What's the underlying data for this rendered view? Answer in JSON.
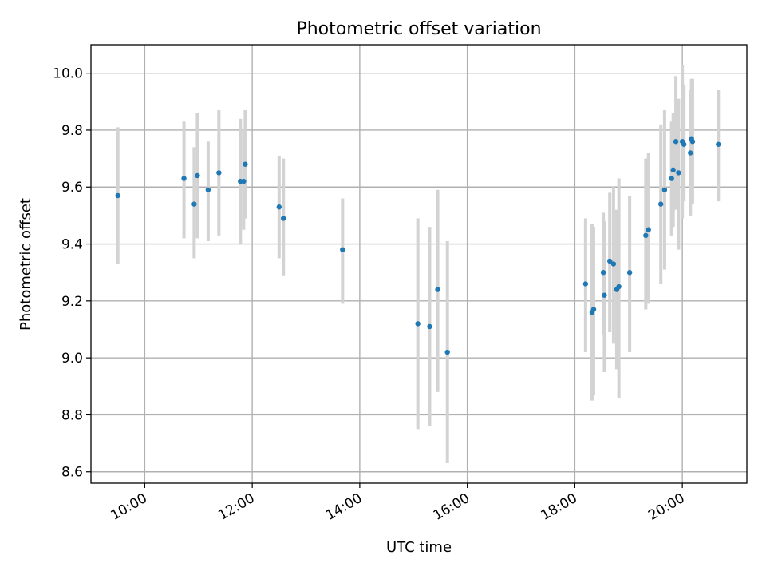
{
  "chart_data": {
    "type": "scatter",
    "title": "Photometric offset variation",
    "xlabel": "UTC time",
    "ylabel": "Photometric offset",
    "grid": true,
    "xlim": [
      9.0,
      21.2
    ],
    "ylim": [
      8.56,
      10.1
    ],
    "x_ticks": [
      {
        "value": 10,
        "label": "10:00"
      },
      {
        "value": 12,
        "label": "12:00"
      },
      {
        "value": 14,
        "label": "14:00"
      },
      {
        "value": 16,
        "label": "16:00"
      },
      {
        "value": 18,
        "label": "18:00"
      },
      {
        "value": 20,
        "label": "20:00"
      }
    ],
    "y_ticks": [
      {
        "value": 8.6,
        "label": "8.6"
      },
      {
        "value": 8.8,
        "label": "8.8"
      },
      {
        "value": 9.0,
        "label": "9.0"
      },
      {
        "value": 9.2,
        "label": "9.2"
      },
      {
        "value": 9.4,
        "label": "9.4"
      },
      {
        "value": 9.6,
        "label": "9.6"
      },
      {
        "value": 9.8,
        "label": "9.8"
      },
      {
        "value": 10.0,
        "label": "10.0"
      }
    ],
    "colors": {
      "marker": "#1f77b4",
      "errorbar": "#d3d3d3",
      "grid": "#b0b0b0"
    },
    "series": [
      {
        "name": "Photometric offset",
        "points": [
          {
            "x": 9.5,
            "y": 9.57,
            "lo": 9.33,
            "hi": 9.81
          },
          {
            "x": 10.73,
            "y": 9.63,
            "lo": 9.42,
            "hi": 9.83
          },
          {
            "x": 10.92,
            "y": 9.54,
            "lo": 9.35,
            "hi": 9.74
          },
          {
            "x": 10.98,
            "y": 9.64,
            "lo": 9.42,
            "hi": 9.86
          },
          {
            "x": 11.18,
            "y": 9.59,
            "lo": 9.41,
            "hi": 9.76
          },
          {
            "x": 11.38,
            "y": 9.65,
            "lo": 9.43,
            "hi": 9.87
          },
          {
            "x": 11.78,
            "y": 9.62,
            "lo": 9.4,
            "hi": 9.84
          },
          {
            "x": 11.84,
            "y": 9.62,
            "lo": 9.45,
            "hi": 9.8
          },
          {
            "x": 11.87,
            "y": 9.68,
            "lo": 9.49,
            "hi": 9.87
          },
          {
            "x": 12.5,
            "y": 9.53,
            "lo": 9.35,
            "hi": 9.71
          },
          {
            "x": 12.58,
            "y": 9.49,
            "lo": 9.29,
            "hi": 9.7
          },
          {
            "x": 13.68,
            "y": 9.38,
            "lo": 9.19,
            "hi": 9.56
          },
          {
            "x": 15.08,
            "y": 9.12,
            "lo": 8.75,
            "hi": 9.49
          },
          {
            "x": 15.3,
            "y": 9.11,
            "lo": 8.76,
            "hi": 9.46
          },
          {
            "x": 15.45,
            "y": 9.24,
            "lo": 8.88,
            "hi": 9.59
          },
          {
            "x": 15.63,
            "y": 9.02,
            "lo": 8.63,
            "hi": 9.41
          },
          {
            "x": 18.2,
            "y": 9.26,
            "lo": 9.02,
            "hi": 9.49
          },
          {
            "x": 18.32,
            "y": 9.16,
            "lo": 8.85,
            "hi": 9.47
          },
          {
            "x": 18.35,
            "y": 9.17,
            "lo": 8.87,
            "hi": 9.46
          },
          {
            "x": 18.53,
            "y": 9.3,
            "lo": 9.08,
            "hi": 9.51
          },
          {
            "x": 18.55,
            "y": 9.22,
            "lo": 8.95,
            "hi": 9.48
          },
          {
            "x": 18.65,
            "y": 9.34,
            "lo": 9.09,
            "hi": 9.58
          },
          {
            "x": 18.72,
            "y": 9.33,
            "lo": 9.05,
            "hi": 9.6
          },
          {
            "x": 18.78,
            "y": 9.24,
            "lo": 8.96,
            "hi": 9.52
          },
          {
            "x": 18.82,
            "y": 9.25,
            "lo": 8.86,
            "hi": 9.63
          },
          {
            "x": 19.02,
            "y": 9.3,
            "lo": 9.02,
            "hi": 9.57
          },
          {
            "x": 19.32,
            "y": 9.43,
            "lo": 9.17,
            "hi": 9.7
          },
          {
            "x": 19.37,
            "y": 9.45,
            "lo": 9.19,
            "hi": 9.72
          },
          {
            "x": 19.6,
            "y": 9.54,
            "lo": 9.26,
            "hi": 9.82
          },
          {
            "x": 19.67,
            "y": 9.59,
            "lo": 9.31,
            "hi": 9.87
          },
          {
            "x": 19.8,
            "y": 9.63,
            "lo": 9.43,
            "hi": 9.83
          },
          {
            "x": 19.83,
            "y": 9.66,
            "lo": 9.46,
            "hi": 9.86
          },
          {
            "x": 19.88,
            "y": 9.76,
            "lo": 9.52,
            "hi": 9.99
          },
          {
            "x": 19.93,
            "y": 9.65,
            "lo": 9.38,
            "hi": 9.91
          },
          {
            "x": 20.0,
            "y": 9.76,
            "lo": 9.49,
            "hi": 10.03
          },
          {
            "x": 20.03,
            "y": 9.75,
            "lo": 9.55,
            "hi": 9.96
          },
          {
            "x": 20.15,
            "y": 9.72,
            "lo": 9.5,
            "hi": 9.94
          },
          {
            "x": 20.17,
            "y": 9.77,
            "lo": 9.57,
            "hi": 9.98
          },
          {
            "x": 20.19,
            "y": 9.76,
            "lo": 9.54,
            "hi": 9.98
          },
          {
            "x": 20.67,
            "y": 9.75,
            "lo": 9.55,
            "hi": 9.94
          }
        ]
      }
    ]
  }
}
